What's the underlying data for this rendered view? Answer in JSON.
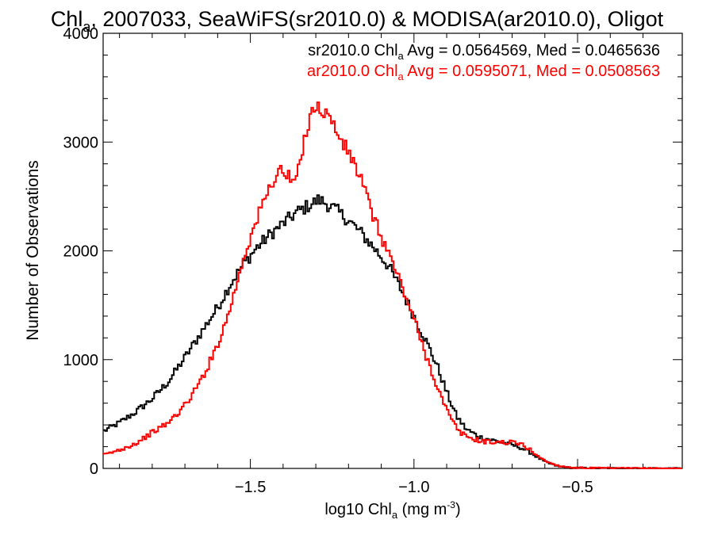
{
  "title": {
    "prefix": "Chl",
    "sub": "a",
    "rest": ", 2007033, SeaWiFS(sr2010.0) & MODISA(ar2010.0), Oligot"
  },
  "xlabel": {
    "prefix": "log10 Chl",
    "sub": "a",
    "mid": " (mg m",
    "sup": "-3",
    "end": ")"
  },
  "ylabel": "Number of Observations",
  "legend": [
    {
      "prefix": "sr2010.0 Chl",
      "sub": "a",
      "rest": " Avg = 0.0564569, Med = 0.0465636",
      "color": "#000000"
    },
    {
      "prefix": "ar2010.0 Chl",
      "sub": "a",
      "rest": " Avg = 0.0595071, Med = 0.0508563",
      "color": "#ff0000"
    }
  ],
  "chart_data": {
    "type": "line",
    "drawstyle": "steps",
    "xlim": [
      -1.95,
      -0.18
    ],
    "ylim": [
      0,
      4000
    ],
    "xticks": [
      -1.5,
      -1.0,
      -0.5
    ],
    "xtick_labels": [
      "−1.5",
      "−1.0",
      "−0.5"
    ],
    "yticks": [
      0,
      1000,
      2000,
      3000,
      4000
    ],
    "ytick_labels": [
      "0",
      "1000",
      "2000",
      "3000",
      "4000"
    ],
    "legend_position": "top-right",
    "series": [
      {
        "name": "sr2010.0",
        "color": "#000000",
        "points": [
          [
            -1.95,
            340
          ],
          [
            -1.9,
            420
          ],
          [
            -1.85,
            520
          ],
          [
            -1.8,
            640
          ],
          [
            -1.75,
            800
          ],
          [
            -1.7,
            1020
          ],
          [
            -1.65,
            1250
          ],
          [
            -1.6,
            1480
          ],
          [
            -1.56,
            1700
          ],
          [
            -1.52,
            1880
          ],
          [
            -1.48,
            2030
          ],
          [
            -1.44,
            2150
          ],
          [
            -1.4,
            2250
          ],
          [
            -1.36,
            2350
          ],
          [
            -1.32,
            2420
          ],
          [
            -1.29,
            2470
          ],
          [
            -1.27,
            2440
          ],
          [
            -1.24,
            2380
          ],
          [
            -1.2,
            2280
          ],
          [
            -1.16,
            2160
          ],
          [
            -1.12,
            2020
          ],
          [
            -1.08,
            1870
          ],
          [
            -1.04,
            1650
          ],
          [
            -1.0,
            1400
          ],
          [
            -0.96,
            1150
          ],
          [
            -0.93,
            950
          ],
          [
            -0.9,
            700
          ],
          [
            -0.87,
            480
          ],
          [
            -0.84,
            360
          ],
          [
            -0.8,
            290
          ],
          [
            -0.76,
            260
          ],
          [
            -0.72,
            230
          ],
          [
            -0.68,
            200
          ],
          [
            -0.64,
            140
          ],
          [
            -0.6,
            60
          ],
          [
            -0.56,
            20
          ],
          [
            -0.52,
            5
          ],
          [
            -0.45,
            2
          ],
          [
            -0.18,
            0
          ]
        ]
      },
      {
        "name": "ar2010.0",
        "color": "#ff0000",
        "points": [
          [
            -1.95,
            120
          ],
          [
            -1.9,
            170
          ],
          [
            -1.85,
            230
          ],
          [
            -1.8,
            330
          ],
          [
            -1.75,
            420
          ],
          [
            -1.7,
            580
          ],
          [
            -1.66,
            760
          ],
          [
            -1.62,
            1000
          ],
          [
            -1.58,
            1300
          ],
          [
            -1.55,
            1600
          ],
          [
            -1.52,
            1950
          ],
          [
            -1.49,
            2200
          ],
          [
            -1.46,
            2450
          ],
          [
            -1.43,
            2650
          ],
          [
            -1.41,
            2750
          ],
          [
            -1.39,
            2700
          ],
          [
            -1.37,
            2620
          ],
          [
            -1.35,
            2750
          ],
          [
            -1.33,
            3100
          ],
          [
            -1.31,
            3330
          ],
          [
            -1.29,
            3300
          ],
          [
            -1.27,
            3280
          ],
          [
            -1.25,
            3180
          ],
          [
            -1.22,
            3000
          ],
          [
            -1.19,
            2850
          ],
          [
            -1.16,
            2650
          ],
          [
            -1.14,
            2450
          ],
          [
            -1.11,
            2200
          ],
          [
            -1.08,
            2000
          ],
          [
            -1.06,
            1850
          ],
          [
            -1.04,
            1700
          ],
          [
            -1.02,
            1540
          ],
          [
            -1.0,
            1380
          ],
          [
            -0.98,
            1180
          ],
          [
            -0.95,
            930
          ],
          [
            -0.92,
            680
          ],
          [
            -0.89,
            470
          ],
          [
            -0.86,
            330
          ],
          [
            -0.82,
            270
          ],
          [
            -0.78,
            245
          ],
          [
            -0.74,
            240
          ],
          [
            -0.7,
            240
          ],
          [
            -0.67,
            220
          ],
          [
            -0.64,
            160
          ],
          [
            -0.6,
            70
          ],
          [
            -0.56,
            25
          ],
          [
            -0.52,
            8
          ],
          [
            -0.45,
            3
          ],
          [
            -0.18,
            0
          ]
        ]
      }
    ]
  }
}
